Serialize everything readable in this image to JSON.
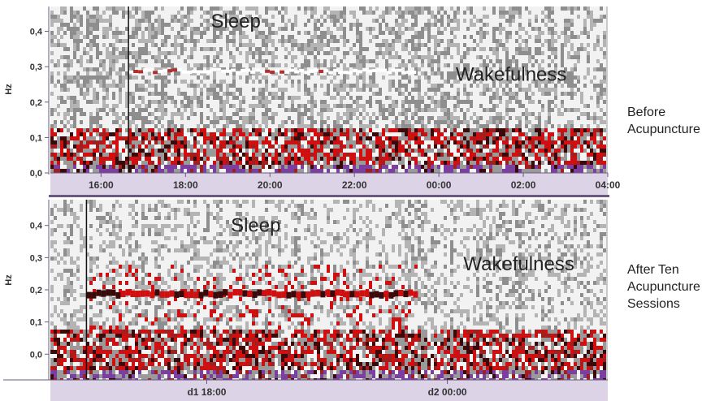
{
  "chart_data": [
    {
      "type": "heatmap",
      "ylabel": "Hz",
      "yticks": [
        "0,0",
        "0,1",
        "0,2",
        "0,3",
        "0,4"
      ],
      "ylim": [
        0,
        0.47
      ],
      "xticks": [
        "16:00",
        "18:00",
        "20:00",
        "22:00",
        "00:00",
        "02:00",
        "04:00"
      ],
      "xtick_hours": [
        16,
        18,
        20,
        22,
        24,
        26,
        28
      ],
      "xlim_hours": [
        14.8,
        28.0
      ],
      "marker_hour": 16.65,
      "regions": [
        {
          "label": "Sleep",
          "hour": 18.6,
          "hz": 0.41
        },
        {
          "label": "Wakefulness",
          "hour": 24.4,
          "hz": 0.26
        }
      ],
      "band": {
        "hz": 0.285,
        "start_hour": 16.65,
        "end_hour": 23.4
      },
      "side_label": [
        "Before",
        "Acupuncture"
      ],
      "colors": {
        "high": "#d01010",
        "mid": "#a02020",
        "dark": "#3a0a0a",
        "purple": "#7a3fa0",
        "background": "#c8c8c8",
        "light": "#f4f4f4"
      }
    },
    {
      "type": "heatmap",
      "ylabel": "Hz",
      "yticks": [
        "0,0",
        "0,1",
        "0,2",
        "0,3",
        "0,4"
      ],
      "ylim": [
        -0.08,
        0.48
      ],
      "xticks": [
        "d1 18:00",
        "d2 00:00"
      ],
      "xtick_hours": [
        18,
        24
      ],
      "xlim_hours": [
        14.1,
        28.0
      ],
      "marker_hour": 15.0,
      "regions": [
        {
          "label": "Sleep",
          "hour": 18.6,
          "hz": 0.38
        },
        {
          "label": "Wakefulness",
          "hour": 24.4,
          "hz": 0.26
        }
      ],
      "band": {
        "hz": 0.19,
        "start_hour": 15.0,
        "end_hour": 23.2
      },
      "side_label": [
        "After Ten",
        "Acupuncture",
        "Sessions"
      ],
      "colors": {
        "high": "#d01010",
        "mid": "#a02020",
        "dark": "#3a0a0a",
        "purple": "#7a3fa0",
        "background": "#c8c8c8",
        "light": "#f4f4f4"
      }
    }
  ]
}
